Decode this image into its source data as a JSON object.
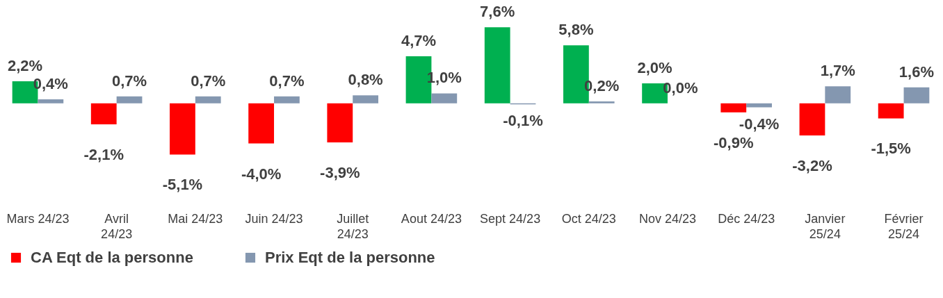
{
  "chart_data": {
    "type": "bar",
    "categories": [
      "Mars 24/23",
      "Avril 24/23",
      "Mai 24/23",
      "Juin 24/23",
      "Juillet 24/23",
      "Aout 24/23",
      "Sept 24/23",
      "Oct 24/23",
      "Nov 24/23",
      "Déc 24/23",
      "Janvier 25/24",
      "Février 25/24"
    ],
    "series": [
      {
        "name": "CA Eqt de la personne",
        "color": "#ff0000",
        "colors": [
          "#00b050",
          "#ff0000",
          "#ff0000",
          "#ff0000",
          "#ff0000",
          "#00b050",
          "#00b050",
          "#00b050",
          "#00b050",
          "#ff0000",
          "#ff0000",
          "#ff0000"
        ],
        "values": [
          2.2,
          -2.1,
          -5.1,
          -4.0,
          -3.9,
          4.7,
          7.6,
          5.8,
          2.0,
          -0.9,
          -3.2,
          -1.5
        ],
        "value_labels": [
          "2,2%",
          "-2,1%",
          "-5,1%",
          "-4,0%",
          "-3,9%",
          "4,7%",
          "7,6%",
          "5,8%",
          "2,0%",
          "-0,9%",
          "-3,2%",
          "-1,5%"
        ]
      },
      {
        "name": "Prix Eqt de la personne",
        "color": "#8497b0",
        "values": [
          0.4,
          0.7,
          0.7,
          0.7,
          0.8,
          1.0,
          -0.1,
          0.2,
          0.0,
          -0.4,
          1.7,
          1.6
        ],
        "value_labels": [
          "0,4%",
          "0,7%",
          "0,7%",
          "0,7%",
          "0,8%",
          "1,0%",
          "-0,1%",
          "0,2%",
          "0,0%",
          "-0,4%",
          "1,7%",
          "1,6%"
        ]
      }
    ],
    "legend": "bottom",
    "grid": false
  }
}
